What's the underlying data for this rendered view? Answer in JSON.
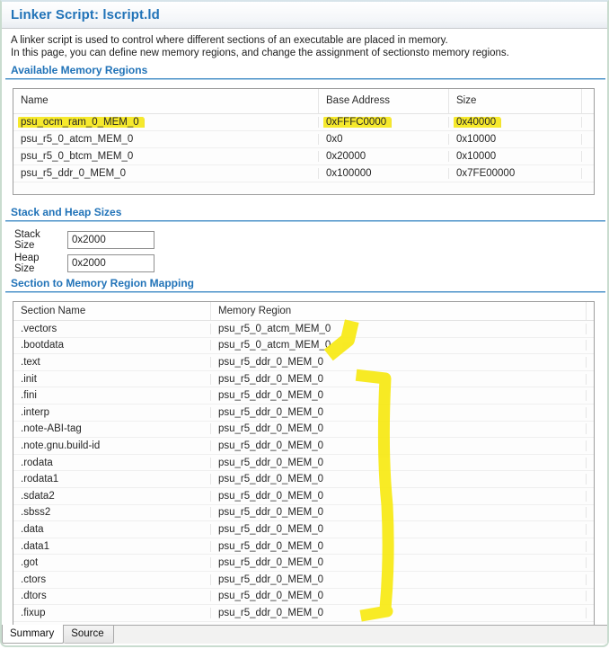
{
  "header": {
    "title": "Linker Script: lscript.ld"
  },
  "description": {
    "line1": "A linker script is used to control where different sections of an executable are placed in memory.",
    "line2": "In this page, you can define new memory regions, and change the assignment of sectionsto memory regions."
  },
  "available_memory_regions": {
    "heading": "Available Memory Regions",
    "columns": [
      "Name",
      "Base Address",
      "Size"
    ],
    "rows": [
      {
        "name": "psu_ocm_ram_0_MEM_0",
        "base_address": "0xFFFC0000",
        "size": "0x40000",
        "highlighted": true
      },
      {
        "name": "psu_r5_0_atcm_MEM_0",
        "base_address": "0x0",
        "size": "0x10000",
        "highlighted": false
      },
      {
        "name": "psu_r5_0_btcm_MEM_0",
        "base_address": "0x20000",
        "size": "0x10000",
        "highlighted": false
      },
      {
        "name": "psu_r5_ddr_0_MEM_0",
        "base_address": "0x100000",
        "size": "0x7FE00000",
        "highlighted": false
      }
    ]
  },
  "stack_heap": {
    "heading": "Stack and Heap Sizes",
    "stack_label": "Stack Size",
    "stack_value": "0x2000",
    "heap_label": "Heap Size",
    "heap_value": "0x2000"
  },
  "section_mapping": {
    "heading": "Section to Memory Region Mapping",
    "columns": [
      "Section Name",
      "Memory Region"
    ],
    "rows": [
      {
        "section": ".vectors",
        "region": "psu_r5_0_atcm_MEM_0"
      },
      {
        "section": ".bootdata",
        "region": "psu_r5_0_atcm_MEM_0"
      },
      {
        "section": ".text",
        "region": "psu_r5_ddr_0_MEM_0"
      },
      {
        "section": ".init",
        "region": "psu_r5_ddr_0_MEM_0"
      },
      {
        "section": ".fini",
        "region": "psu_r5_ddr_0_MEM_0"
      },
      {
        "section": ".interp",
        "region": "psu_r5_ddr_0_MEM_0"
      },
      {
        "section": ".note-ABI-tag",
        "region": "psu_r5_ddr_0_MEM_0"
      },
      {
        "section": ".note.gnu.build-id",
        "region": "psu_r5_ddr_0_MEM_0"
      },
      {
        "section": ".rodata",
        "region": "psu_r5_ddr_0_MEM_0"
      },
      {
        "section": ".rodata1",
        "region": "psu_r5_ddr_0_MEM_0"
      },
      {
        "section": ".sdata2",
        "region": "psu_r5_ddr_0_MEM_0"
      },
      {
        "section": ".sbss2",
        "region": "psu_r5_ddr_0_MEM_0"
      },
      {
        "section": ".data",
        "region": "psu_r5_ddr_0_MEM_0"
      },
      {
        "section": ".data1",
        "region": "psu_r5_ddr_0_MEM_0"
      },
      {
        "section": ".got",
        "region": "psu_r5_ddr_0_MEM_0"
      },
      {
        "section": ".ctors",
        "region": "psu_r5_ddr_0_MEM_0"
      },
      {
        "section": ".dtors",
        "region": "psu_r5_ddr_0_MEM_0"
      },
      {
        "section": ".fixup",
        "region": "psu_r5_ddr_0_MEM_0"
      }
    ]
  },
  "tabs": [
    {
      "label": "Summary",
      "active": true
    },
    {
      "label": "Source",
      "active": false
    }
  ],
  "annotations": {
    "highlighter_color": "#f7e914",
    "marks": [
      "yellow-highlight-over-psu_ocm_ram_0_MEM_0-row-values",
      "yellow-bracket-over-atcm-mapped-sections",
      "yellow-bracket-over-ddr-mapped-sections"
    ]
  },
  "colors": {
    "heading_blue": "#2173b8",
    "rule_blue": "#4a90c8",
    "highlight_yellow": "#f7e914"
  }
}
